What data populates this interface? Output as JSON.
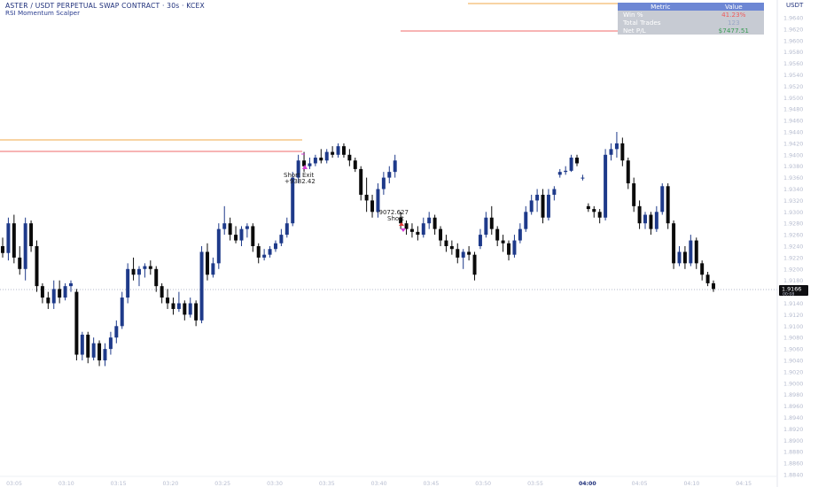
{
  "header": {
    "title": "ASTER / USDT PERPETUAL SWAP CONTRACT · 30s · KCEX",
    "indicator": "RSI Momentum Scalper",
    "currency": "USDT"
  },
  "metrics_table": {
    "header_metric": "Metric",
    "header_value": "Value",
    "rows": [
      {
        "label": "Win %",
        "value": "41.23%",
        "color": "#ef5b5b"
      },
      {
        "label": "Total Trades",
        "value": "123",
        "color": "#9aa7c7"
      },
      {
        "label": "Net P/L",
        "value": "$7477.51",
        "color": "#3a9b55"
      }
    ]
  },
  "price_tag": {
    "price": "1.9166",
    "sub": "00:08"
  },
  "trade_labels": [
    {
      "text": "Short Exit",
      "sub": "+9382.42"
    },
    {
      "text": "-9072.627",
      "sub": "Short"
    }
  ],
  "colors": {
    "bull": "#1e3a8a",
    "bear": "#0a0a0a",
    "axis_text": "#b6bccf",
    "level_orange": "#f0a94a",
    "level_red": "#ef6a6a",
    "marker_pink": "#d63fd6"
  },
  "chart_data": {
    "type": "candlestick",
    "price_labels": [
      "1.9640",
      "1.9620",
      "1.9600",
      "1.9580",
      "1.9560",
      "1.9540",
      "1.9520",
      "1.9500",
      "1.9480",
      "1.9460",
      "1.9440",
      "1.9420",
      "1.9400",
      "1.9380",
      "1.9360",
      "1.9340",
      "1.9320",
      "1.9300",
      "1.9280",
      "1.9260",
      "1.9240",
      "1.9220",
      "1.9200",
      "1.9180",
      "1.9160",
      "1.9140",
      "1.9120",
      "1.9100",
      "1.9080",
      "1.9060",
      "1.9040",
      "1.9020",
      "1.9000",
      "1.8980",
      "1.8960",
      "1.8940",
      "1.8920",
      "1.8900",
      "1.8880",
      "1.8860",
      "1.8840"
    ],
    "time_labels": [
      "03:05",
      "03:10",
      "03:15",
      "03:20",
      "03:25",
      "03:30",
      "03:35",
      "03:40",
      "03:45",
      "03:50",
      "03:55",
      "04:00",
      "04:05",
      "04:10",
      "04:15"
    ],
    "ylim": [
      1.884,
      1.965
    ],
    "candles": [
      [
        1.924,
        1.9255,
        1.922,
        1.9228
      ],
      [
        1.9228,
        1.929,
        1.9215,
        1.928
      ],
      [
        1.928,
        1.9295,
        1.921,
        1.922
      ],
      [
        1.922,
        1.924,
        1.919,
        1.92
      ],
      [
        1.92,
        1.929,
        1.918,
        1.928
      ],
      [
        1.928,
        1.9285,
        1.923,
        1.924
      ],
      [
        1.924,
        1.925,
        1.916,
        1.917
      ],
      [
        1.917,
        1.9175,
        1.914,
        1.915
      ],
      [
        1.915,
        1.916,
        1.913,
        1.914
      ],
      [
        1.914,
        1.918,
        1.913,
        1.9165
      ],
      [
        1.9165,
        1.918,
        1.914,
        1.915
      ],
      [
        1.915,
        1.9175,
        1.9145,
        1.917
      ],
      [
        1.917,
        1.918,
        1.916,
        1.9175
      ],
      [
        1.916,
        1.9165,
        1.904,
        1.905
      ],
      [
        1.905,
        1.909,
        1.904,
        1.9085
      ],
      [
        1.9085,
        1.909,
        1.9035,
        1.9045
      ],
      [
        1.9045,
        1.908,
        1.904,
        1.907
      ],
      [
        1.907,
        1.9075,
        1.903,
        1.904
      ],
      [
        1.904,
        1.907,
        1.903,
        1.906
      ],
      [
        1.906,
        1.909,
        1.905,
        1.908
      ],
      [
        1.908,
        1.911,
        1.907,
        1.91
      ],
      [
        1.91,
        1.916,
        1.9095,
        1.915
      ],
      [
        1.915,
        1.921,
        1.914,
        1.92
      ],
      [
        1.92,
        1.922,
        1.918,
        1.919
      ],
      [
        1.919,
        1.9205,
        1.917,
        1.92
      ],
      [
        1.92,
        1.921,
        1.9185,
        1.9205
      ],
      [
        1.9205,
        1.9215,
        1.919,
        1.92
      ],
      [
        1.92,
        1.9205,
        1.916,
        1.917
      ],
      [
        1.917,
        1.9175,
        1.914,
        1.915
      ],
      [
        1.915,
        1.9165,
        1.913,
        1.914
      ],
      [
        1.914,
        1.915,
        1.912,
        1.913
      ],
      [
        1.913,
        1.916,
        1.9125,
        1.914
      ],
      [
        1.914,
        1.9145,
        1.911,
        1.912
      ],
      [
        1.912,
        1.915,
        1.9115,
        1.914
      ],
      [
        1.914,
        1.9145,
        1.91,
        1.911
      ],
      [
        1.911,
        1.924,
        1.9105,
        1.923
      ],
      [
        1.923,
        1.9245,
        1.918,
        1.919
      ],
      [
        1.919,
        1.922,
        1.9185,
        1.921
      ],
      [
        1.921,
        1.928,
        1.92,
        1.927
      ],
      [
        1.927,
        1.931,
        1.926,
        1.928
      ],
      [
        1.928,
        1.929,
        1.925,
        1.926
      ],
      [
        1.926,
        1.9275,
        1.9245,
        1.925
      ],
      [
        1.925,
        1.9275,
        1.924,
        1.927
      ],
      [
        1.927,
        1.928,
        1.9255,
        1.9275
      ],
      [
        1.9275,
        1.928,
        1.923,
        1.924
      ],
      [
        1.924,
        1.9245,
        1.921,
        1.922
      ],
      [
        1.922,
        1.9235,
        1.9215,
        1.9225
      ],
      [
        1.9225,
        1.924,
        1.922,
        1.9235
      ],
      [
        1.9235,
        1.925,
        1.923,
        1.9245
      ],
      [
        1.9245,
        1.927,
        1.924,
        1.926
      ],
      [
        1.926,
        1.929,
        1.9255,
        1.928
      ],
      [
        1.928,
        1.937,
        1.9275,
        1.936
      ],
      [
        1.936,
        1.94,
        1.935,
        1.939
      ],
      [
        1.939,
        1.9405,
        1.937,
        1.938
      ],
      [
        1.938,
        1.9395,
        1.9375,
        1.9385
      ],
      [
        1.9385,
        1.94,
        1.938,
        1.9395
      ],
      [
        1.9395,
        1.941,
        1.9385,
        1.939
      ],
      [
        1.939,
        1.941,
        1.9385,
        1.9405
      ],
      [
        1.9405,
        1.9415,
        1.9395,
        1.94
      ],
      [
        1.94,
        1.942,
        1.9395,
        1.9415
      ],
      [
        1.9415,
        1.942,
        1.9395,
        1.94
      ],
      [
        1.94,
        1.941,
        1.938,
        1.939
      ],
      [
        1.939,
        1.9395,
        1.937,
        1.9375
      ],
      [
        1.9375,
        1.938,
        1.932,
        1.933
      ],
      [
        1.933,
        1.936,
        1.93,
        1.932
      ],
      [
        1.932,
        1.933,
        1.929,
        1.93
      ],
      [
        1.93,
        1.935,
        1.929,
        1.934
      ],
      [
        1.934,
        1.937,
        1.933,
        1.936
      ],
      [
        1.936,
        1.938,
        1.935,
        1.937
      ],
      [
        1.937,
        1.94,
        1.936,
        1.939
      ],
      [
        1.929,
        1.93,
        1.927,
        1.928
      ],
      [
        1.928,
        1.9285,
        1.926,
        1.927
      ],
      [
        1.927,
        1.928,
        1.9255,
        1.9265
      ],
      [
        1.9265,
        1.9275,
        1.925,
        1.926
      ],
      [
        1.926,
        1.929,
        1.9255,
        1.928
      ],
      [
        1.928,
        1.93,
        1.927,
        1.929
      ],
      [
        1.929,
        1.9295,
        1.926,
        1.927
      ],
      [
        1.927,
        1.9275,
        1.924,
        1.925
      ],
      [
        1.925,
        1.926,
        1.923,
        1.924
      ],
      [
        1.924,
        1.925,
        1.9225,
        1.9235
      ],
      [
        1.9235,
        1.9245,
        1.921,
        1.922
      ],
      [
        1.922,
        1.9235,
        1.92,
        1.923
      ],
      [
        1.923,
        1.924,
        1.9215,
        1.9225
      ],
      [
        1.9225,
        1.923,
        1.918,
        1.919
      ],
      [
        1.924,
        1.927,
        1.9235,
        1.926
      ],
      [
        1.926,
        1.93,
        1.9255,
        1.929
      ],
      [
        1.929,
        1.931,
        1.926,
        1.927
      ],
      [
        1.927,
        1.9275,
        1.924,
        1.925
      ],
      [
        1.925,
        1.926,
        1.923,
        1.9245
      ],
      [
        1.9245,
        1.925,
        1.9215,
        1.9225
      ],
      [
        1.9225,
        1.926,
        1.922,
        1.925
      ],
      [
        1.925,
        1.928,
        1.9245,
        1.927
      ],
      [
        1.927,
        1.931,
        1.9265,
        1.93
      ],
      [
        1.93,
        1.933,
        1.9295,
        1.932
      ],
      [
        1.932,
        1.934,
        1.93,
        1.933
      ],
      [
        1.933,
        1.934,
        1.928,
        1.929
      ],
      [
        1.929,
        1.934,
        1.9285,
        1.933
      ],
      [
        1.933,
        1.9345,
        1.932,
        1.934
      ],
      [
        1.9365,
        1.9375,
        1.936,
        1.937
      ],
      [
        1.937,
        1.938,
        1.9365,
        1.9372
      ],
      [
        1.9372,
        1.94,
        1.937,
        1.9395
      ],
      [
        1.9395,
        1.94,
        1.938,
        1.9385
      ],
      [
        1.936,
        1.9365,
        1.9355,
        1.936
      ],
      [
        1.931,
        1.9315,
        1.93,
        1.9305
      ],
      [
        1.9305,
        1.931,
        1.929,
        1.93
      ],
      [
        1.93,
        1.9305,
        1.928,
        1.929
      ],
      [
        1.929,
        1.941,
        1.9285,
        1.94
      ],
      [
        1.94,
        1.942,
        1.939,
        1.941
      ],
      [
        1.941,
        1.944,
        1.9395,
        1.942
      ],
      [
        1.942,
        1.943,
        1.938,
        1.939
      ],
      [
        1.939,
        1.9395,
        1.934,
        1.935
      ],
      [
        1.935,
        1.936,
        1.93,
        1.931
      ],
      [
        1.931,
        1.932,
        1.927,
        1.928
      ],
      [
        1.928,
        1.93,
        1.927,
        1.9295
      ],
      [
        1.9295,
        1.93,
        1.926,
        1.927
      ],
      [
        1.927,
        1.931,
        1.9265,
        1.93
      ],
      [
        1.93,
        1.935,
        1.9295,
        1.9345
      ],
      [
        1.9345,
        1.935,
        1.927,
        1.928
      ],
      [
        1.928,
        1.9285,
        1.92,
        1.921
      ],
      [
        1.921,
        1.924,
        1.9205,
        1.923
      ],
      [
        1.923,
        1.924,
        1.92,
        1.921
      ],
      [
        1.921,
        1.926,
        1.9205,
        1.925
      ],
      [
        1.925,
        1.9255,
        1.92,
        1.921
      ],
      [
        1.921,
        1.9215,
        1.918,
        1.919
      ],
      [
        1.919,
        1.9195,
        1.917,
        1.9175
      ],
      [
        1.9175,
        1.918,
        1.916,
        1.9165
      ]
    ]
  }
}
